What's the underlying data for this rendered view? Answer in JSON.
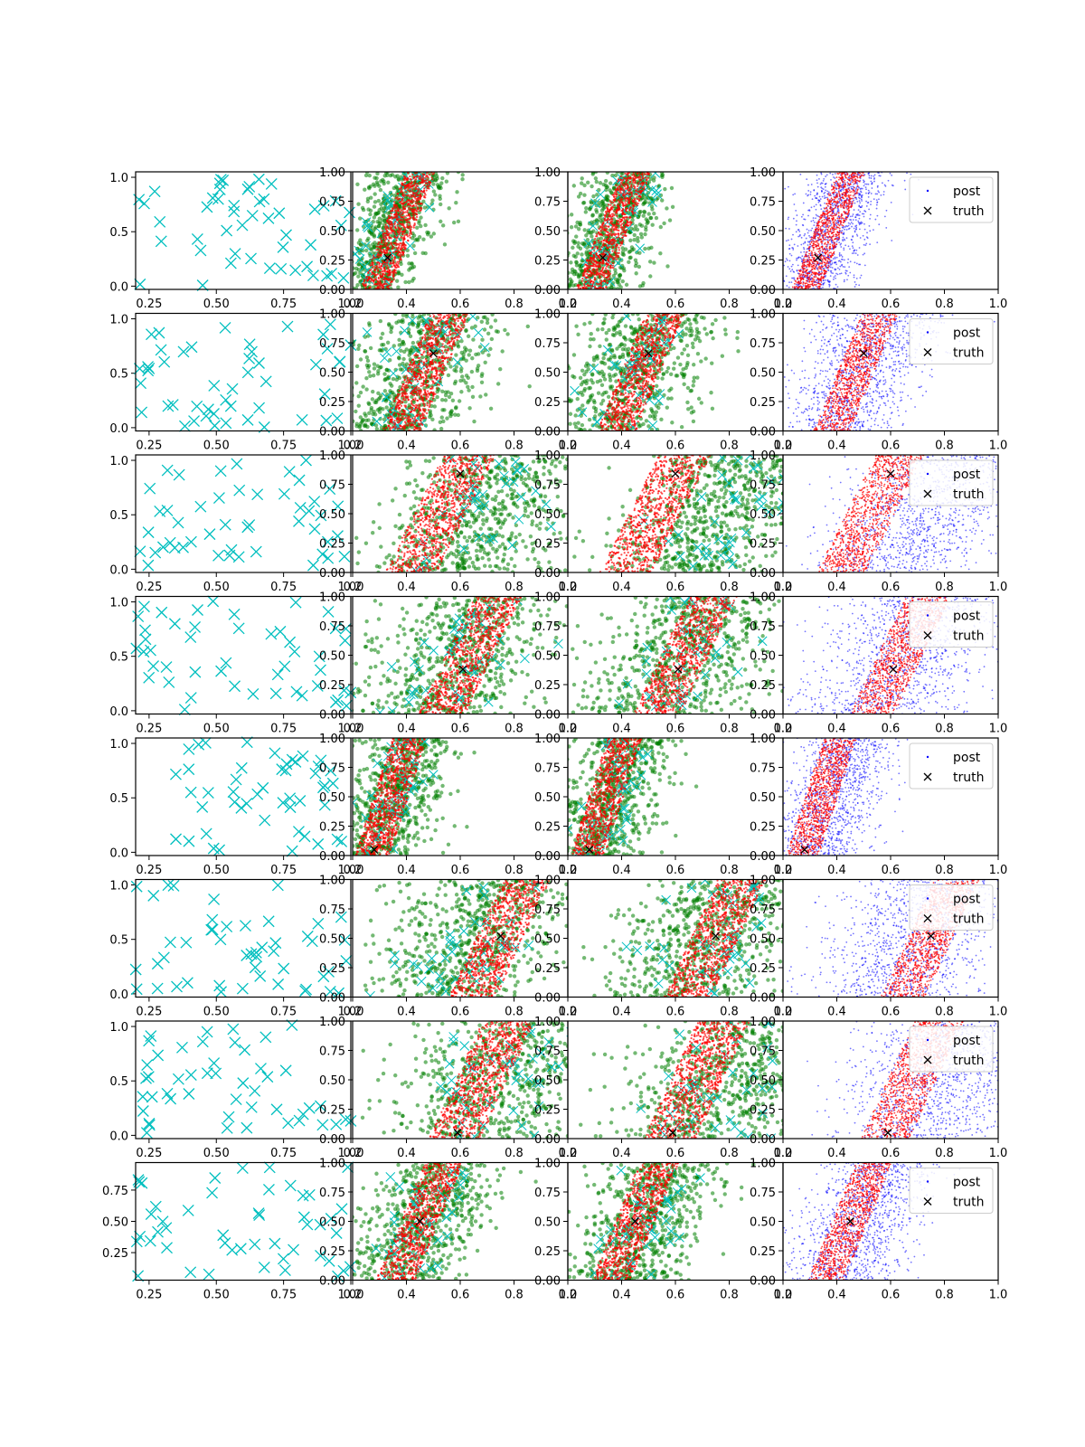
{
  "figure": {
    "rows": 8,
    "cols": 4
  },
  "colors": {
    "design": "#00bfbf",
    "prior_green": "#007f00",
    "posterior_red": "#ff0000",
    "post_blue": "#0000ff",
    "truth": "#000000",
    "axes": "#000000"
  },
  "legend": {
    "post_label": "post",
    "truth_label": "truth"
  },
  "chart_data": [
    {
      "row": 1,
      "truth": [
        0.33,
        0.27
      ],
      "dir": 0.17,
      "center": 0.34,
      "spread": 0.07,
      "red_width": 0.07,
      "design_shift": 0.05,
      "first_col": {
        "xticks": [
          "0.25",
          "0.50",
          "0.75",
          "1.00"
        ],
        "yticks": [
          "0.0",
          "0.5",
          "1.0"
        ],
        "xlim": [
          0.2,
          1.0
        ],
        "ylim": [
          -0.03,
          1.05
        ]
      }
    },
    {
      "row": 2,
      "truth": [
        0.5,
        0.66
      ],
      "dir": 0.18,
      "center": 0.45,
      "spread": 0.11,
      "red_width": 0.09,
      "design_shift": 0.0,
      "first_col": {
        "xticks": [
          "0.25",
          "0.50",
          "0.75",
          "1.00"
        ],
        "yticks": [
          "0.0",
          "0.5",
          "1.0"
        ],
        "xlim": [
          0.2,
          1.0
        ],
        "ylim": [
          -0.03,
          1.05
        ]
      }
    },
    {
      "row": 3,
      "truth": [
        0.6,
        0.84
      ],
      "dir": 0.22,
      "center": 0.68,
      "spread": 0.14,
      "red_width": 0.12,
      "design_shift": 0.12,
      "first_col": {
        "xticks": [
          "0.25",
          "0.50",
          "0.75",
          "1.00"
        ],
        "yticks": [
          "0.0",
          "0.5",
          "1.0"
        ],
        "xlim": [
          0.2,
          1.0
        ],
        "ylim": [
          -0.03,
          1.05
        ]
      }
    },
    {
      "row": 4,
      "truth": [
        0.61,
        0.38
      ],
      "dir": 0.21,
      "center": 0.6,
      "spread": 0.15,
      "red_width": 0.11,
      "design_shift": 0.05,
      "first_col": {
        "xticks": [
          "0.25",
          "0.50",
          "0.75",
          "1.00"
        ],
        "yticks": [
          "0.0",
          "0.5",
          "1.0"
        ],
        "xlim": [
          0.2,
          1.0
        ],
        "ylim": [
          -0.03,
          1.05
        ]
      }
    },
    {
      "row": 5,
      "truth": [
        0.28,
        0.05
      ],
      "dir": 0.14,
      "center": 0.35,
      "spread": 0.08,
      "red_width": 0.08,
      "design_shift": 0.04,
      "first_col": {
        "xticks": [
          "0.25",
          "0.50",
          "0.75",
          "1.00"
        ],
        "yticks": [
          "0.0",
          "0.5",
          "1.0"
        ],
        "xlim": [
          0.2,
          1.0
        ],
        "ylim": [
          -0.03,
          1.05
        ]
      }
    },
    {
      "row": 6,
      "truth": [
        0.75,
        0.52
      ],
      "dir": 0.2,
      "center": 0.65,
      "spread": 0.15,
      "red_width": 0.11,
      "design_shift": 0.12,
      "first_col": {
        "xticks": [
          "0.25",
          "0.50",
          "0.75",
          "1.00"
        ],
        "yticks": [
          "0.0",
          "0.5",
          "1.0"
        ],
        "xlim": [
          0.2,
          1.0
        ],
        "ylim": [
          -0.03,
          1.05
        ]
      }
    },
    {
      "row": 7,
      "truth": [
        0.59,
        0.05
      ],
      "dir": 0.2,
      "center": 0.75,
      "spread": 0.16,
      "red_width": 0.12,
      "design_shift": 0.08,
      "first_col": {
        "xticks": [
          "0.25",
          "0.50",
          "0.75",
          "1.00"
        ],
        "yticks": [
          "0.0",
          "0.5",
          "1.0"
        ],
        "xlim": [
          0.2,
          1.0
        ],
        "ylim": [
          -0.03,
          1.05
        ]
      }
    },
    {
      "row": 8,
      "truth": [
        0.45,
        0.5
      ],
      "dir": 0.18,
      "center": 0.45,
      "spread": 0.1,
      "red_width": 0.09,
      "design_shift": 0.06,
      "first_col": {
        "xticks": [
          "0.25",
          "0.50",
          "0.75",
          "1.00"
        ],
        "yticks": [
          "0.25",
          "0.50",
          "0.75"
        ],
        "xlim": [
          0.2,
          1.0
        ],
        "ylim": [
          0.03,
          0.97
        ]
      }
    }
  ],
  "shared_axes": {
    "xticks": [
      "0.2",
      "0.4",
      "0.6",
      "0.8",
      "1.0"
    ],
    "yticks": [
      "0.00",
      "0.25",
      "0.50",
      "0.75",
      "1.00"
    ],
    "xlim": [
      0.2,
      1.0
    ],
    "ylim": [
      0.0,
      1.0
    ]
  }
}
